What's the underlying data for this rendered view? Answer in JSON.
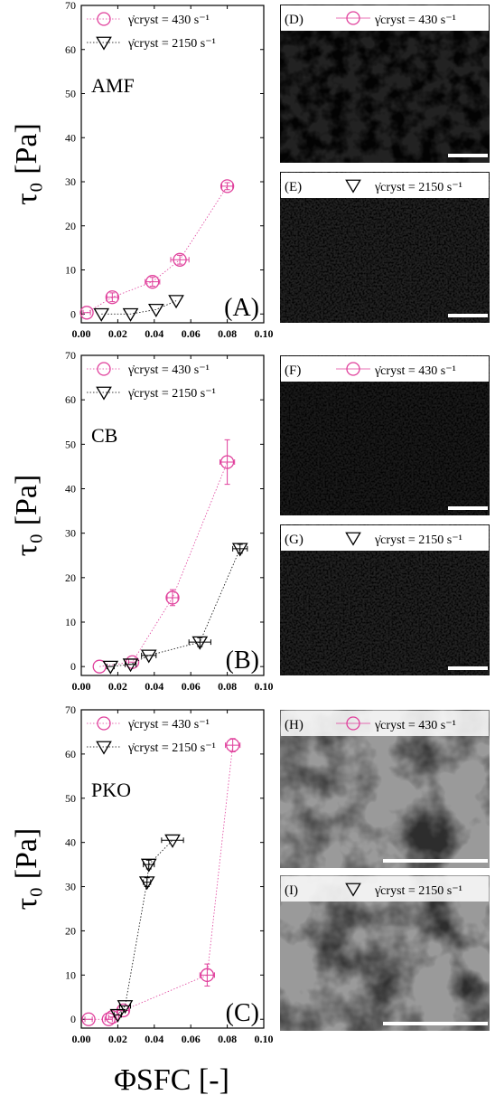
{
  "chart_data": [
    {
      "type": "scatter",
      "ylabel": "τ₀ [Pa]",
      "annotation": "AMF",
      "panel": "(A)",
      "xlim": [
        0,
        0.1
      ],
      "ylim": [
        -2,
        70
      ],
      "xticks": [
        {
          "value": 0,
          "label": "0.00"
        },
        {
          "value": 0.02,
          "label": "0.02"
        },
        {
          "value": 0.04,
          "label": "0.04"
        },
        {
          "value": 0.06,
          "label": "0.06"
        },
        {
          "value": 0.08,
          "label": "0.08"
        },
        {
          "value": 0.1,
          "label": "0.10"
        }
      ],
      "yticks": [
        0,
        10,
        20,
        30,
        40,
        50,
        60,
        70
      ],
      "series": [
        {
          "name": "γ̇cryst = 430 s⁻¹",
          "marker": "circle",
          "color": "#e0409c",
          "x": [
            0.003,
            0.017,
            0.039,
            0.054,
            0.08
          ],
          "values": [
            0.3,
            3.8,
            7.3,
            12.3,
            29
          ],
          "xerr": [
            0.002,
            0.003,
            0.004,
            0.005,
            0.003
          ],
          "yerr": [
            null,
            1,
            1,
            1,
            0.8
          ]
        },
        {
          "name": "γ̇cryst = 2150 s⁻¹",
          "marker": "triangle",
          "color": "#000000",
          "x": [
            0.011,
            0.027,
            0.041,
            0.052
          ],
          "values": [
            0,
            0,
            1,
            3
          ],
          "xerr": [
            null,
            null,
            null,
            null
          ],
          "yerr": [
            null,
            null,
            null,
            null
          ]
        }
      ]
    },
    {
      "type": "scatter",
      "ylabel": "τ₀ [Pa]",
      "annotation": "CB",
      "panel": "(B)",
      "xlim": [
        0,
        0.1
      ],
      "ylim": [
        -2,
        70
      ],
      "xticks": [
        {
          "value": 0,
          "label": "0.00"
        },
        {
          "value": 0.02,
          "label": "0.02"
        },
        {
          "value": 0.04,
          "label": "0.04"
        },
        {
          "value": 0.06,
          "label": "0.06"
        },
        {
          "value": 0.08,
          "label": "0.08"
        },
        {
          "value": 0.1,
          "label": "0.10"
        }
      ],
      "yticks": [
        0,
        10,
        20,
        30,
        40,
        50,
        60,
        70
      ],
      "series": [
        {
          "name": "γ̇cryst = 430 s⁻¹",
          "marker": "circle",
          "color": "#e0409c",
          "x": [
            0.01,
            0.028,
            0.05,
            0.08
          ],
          "values": [
            0,
            1,
            15.5,
            46
          ],
          "xerr": [
            null,
            0.002,
            0.003,
            0.004
          ],
          "yerr": [
            null,
            null,
            1.8,
            5
          ]
        },
        {
          "name": "γ̇cryst = 2150 s⁻¹",
          "marker": "triangle",
          "color": "#000000",
          "x": [
            0.016,
            0.027,
            0.037,
            0.065,
            0.087
          ],
          "values": [
            0,
            0.5,
            2.5,
            5.5,
            26.5
          ],
          "xerr": [
            0.002,
            0.003,
            0.004,
            0.006,
            0.004
          ],
          "yerr": [
            null,
            null,
            null,
            1,
            1
          ]
        }
      ]
    },
    {
      "type": "scatter",
      "ylabel": "τ₀ [Pa]",
      "annotation": "PKO",
      "panel": "(C)",
      "xlabel": "ΦSFC [-]",
      "xlim": [
        0,
        0.1
      ],
      "ylim": [
        -2,
        70
      ],
      "xticks": [
        {
          "value": 0,
          "label": "0.00"
        },
        {
          "value": 0.02,
          "label": "0.02"
        },
        {
          "value": 0.04,
          "label": "0.04"
        },
        {
          "value": 0.06,
          "label": "0.06"
        },
        {
          "value": 0.08,
          "label": "0.08"
        },
        {
          "value": 0.1,
          "label": "0.10"
        }
      ],
      "yticks": [
        0,
        10,
        20,
        30,
        40,
        50,
        60,
        70
      ],
      "series": [
        {
          "name": "γ̇cryst = 430 s⁻¹",
          "marker": "circle",
          "color": "#e0409c",
          "x": [
            0.004,
            0.015,
            0.017,
            0.023,
            0.069,
            0.083
          ],
          "values": [
            0,
            0,
            0.5,
            2,
            10,
            62
          ],
          "xerr": [
            0.002,
            0.002,
            0.002,
            0.003,
            0.004,
            0.004
          ],
          "yerr": [
            null,
            null,
            null,
            null,
            2.5,
            1.5
          ]
        },
        {
          "name": "γ̇cryst = 2150 s⁻¹",
          "marker": "triangle",
          "color": "#000000",
          "x": [
            0.02,
            0.024,
            0.036,
            0.037,
            0.05
          ],
          "values": [
            1,
            3,
            31,
            35,
            40.5
          ],
          "xerr": [
            0.002,
            0.003,
            0.002,
            0.003,
            0.006
          ],
          "yerr": [
            null,
            null,
            1,
            1,
            null
          ]
        }
      ]
    }
  ],
  "micrographs": [
    {
      "label": "(D)",
      "legend": "γ̇cryst = 430 s⁻¹"
    },
    {
      "label": "(E)",
      "legend": "γ̇cryst = 2150 s⁻¹"
    },
    {
      "label": "(F)",
      "legend": "γ̇cryst = 430 s⁻¹"
    },
    {
      "label": "(G)",
      "legend": "γ̇cryst = 2150 s⁻¹"
    },
    {
      "label": "(H)",
      "legend": "γ̇cryst = 430 s⁻¹"
    },
    {
      "label": "(I)",
      "legend": "γ̇cryst = 2150 s⁻¹"
    }
  ]
}
